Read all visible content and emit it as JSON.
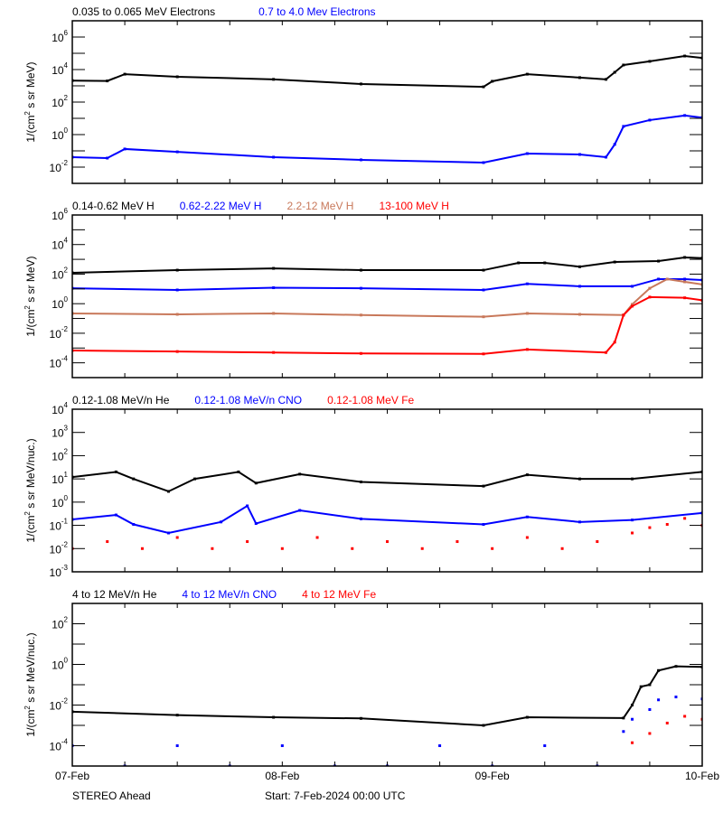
{
  "chart_data": [
    {
      "type": "line",
      "legend": [
        {
          "text": "0.035 to 0.065 MeV Electrons",
          "color": "#000000"
        },
        {
          "text": "0.7 to 4.0 Mev Electrons",
          "color": "#0000ff"
        }
      ],
      "ylabel": "1/(cm2 s sr MeV)",
      "yscale": "log",
      "ylim": [
        0.001,
        10000000.0
      ],
      "ytick_exponents": [
        "6",
        "4",
        "2",
        "0",
        "-2"
      ],
      "series": [
        {
          "color": "#000000",
          "style": "line",
          "points": [
            [
              "07-Feb 00:00",
              2100
            ],
            [
              "07-Feb 04:00",
              2000
            ],
            [
              "07-Feb 06:00",
              5200
            ],
            [
              "07-Feb 12:00",
              3600
            ],
            [
              "07-Feb 23:00",
              2500
            ],
            [
              "08-Feb 09:00",
              1300
            ],
            [
              "08-Feb 23:00",
              870
            ],
            [
              "09-Feb 00:00",
              1900
            ],
            [
              "09-Feb 04:00",
              5200
            ],
            [
              "09-Feb 10:00",
              3200
            ],
            [
              "09-Feb 13:00",
              2500
            ],
            [
              "09-Feb 14:00",
              6800
            ],
            [
              "09-Feb 15:00",
              19000
            ],
            [
              "09-Feb 18:00",
              32000
            ],
            [
              "09-Feb 22:00",
              68000
            ],
            [
              "10-Feb 00:00",
              52000
            ]
          ]
        },
        {
          "color": "#0000ff",
          "style": "line",
          "points": [
            [
              "07-Feb 00:00",
              0.041
            ],
            [
              "07-Feb 04:00",
              0.036
            ],
            [
              "07-Feb 06:00",
              0.13
            ],
            [
              "07-Feb 12:00",
              0.087
            ],
            [
              "07-Feb 23:00",
              0.041
            ],
            [
              "08-Feb 09:00",
              0.028
            ],
            [
              "08-Feb 23:00",
              0.019
            ],
            [
              "09-Feb 04:00",
              0.068
            ],
            [
              "09-Feb 10:00",
              0.06
            ],
            [
              "09-Feb 13:00",
              0.041
            ],
            [
              "09-Feb 14:00",
              0.25
            ],
            [
              "09-Feb 15:00",
              3.2
            ],
            [
              "09-Feb 18:00",
              7.8
            ],
            [
              "09-Feb 22:00",
              15
            ],
            [
              "10-Feb 00:00",
              11
            ]
          ]
        }
      ]
    },
    {
      "type": "line",
      "legend": [
        {
          "text": "0.14-0.62 MeV H",
          "color": "#000000"
        },
        {
          "text": "0.62-2.22 MeV H",
          "color": "#0000ff"
        },
        {
          "text": "2.2-12 MeV H",
          "color": "#c8785a"
        },
        {
          "text": "13-100 MeV H",
          "color": "#ff0000"
        }
      ],
      "ylabel": "1/(cm2 s sr MeV)",
      "yscale": "log",
      "ylim": [
        1e-05,
        1000000.0
      ],
      "ytick_exponents": [
        "6",
        "4",
        "2",
        "0",
        "-2",
        "-4"
      ],
      "series": [
        {
          "color": "#000000",
          "style": "line",
          "points": [
            [
              "07-Feb 00:00",
              123
            ],
            [
              "07-Feb 12:00",
              186
            ],
            [
              "07-Feb 23:00",
              245
            ],
            [
              "08-Feb 09:00",
              186
            ],
            [
              "08-Feb 23:00",
              186
            ],
            [
              "09-Feb 03:00",
              575
            ],
            [
              "09-Feb 06:00",
              575
            ],
            [
              "09-Feb 10:00",
              316
            ],
            [
              "09-Feb 14:00",
              660
            ],
            [
              "09-Feb 19:00",
              760
            ],
            [
              "09-Feb 22:00",
              1350
            ],
            [
              "10-Feb 00:00",
              1200
            ]
          ]
        },
        {
          "color": "#0000ff",
          "style": "line",
          "points": [
            [
              "07-Feb 00:00",
              11
            ],
            [
              "07-Feb 12:00",
              8.5
            ],
            [
              "07-Feb 23:00",
              12
            ],
            [
              "08-Feb 09:00",
              11
            ],
            [
              "08-Feb 23:00",
              8.5
            ],
            [
              "09-Feb 04:00",
              22
            ],
            [
              "09-Feb 10:00",
              15
            ],
            [
              "09-Feb 16:00",
              15
            ],
            [
              "09-Feb 19:00",
              46
            ],
            [
              "09-Feb 22:00",
              46
            ],
            [
              "10-Feb 00:00",
              40
            ]
          ]
        },
        {
          "color": "#c8785a",
          "style": "line",
          "points": [
            [
              "07-Feb 00:00",
              0.22
            ],
            [
              "07-Feb 12:00",
              0.19
            ],
            [
              "07-Feb 23:00",
              0.22
            ],
            [
              "08-Feb 09:00",
              0.17
            ],
            [
              "08-Feb 23:00",
              0.13
            ],
            [
              "09-Feb 04:00",
              0.22
            ],
            [
              "09-Feb 10:00",
              0.19
            ],
            [
              "09-Feb 15:00",
              0.17
            ],
            [
              "09-Feb 16:00",
              0.9
            ],
            [
              "09-Feb 18:00",
              11
            ],
            [
              "09-Feb 20:00",
              46
            ],
            [
              "09-Feb 22:00",
              30
            ],
            [
              "10-Feb 00:00",
              20
            ]
          ]
        },
        {
          "color": "#ff0000",
          "style": "line",
          "points": [
            [
              "07-Feb 00:00",
              0.00068
            ],
            [
              "07-Feb 12:00",
              0.00058
            ],
            [
              "07-Feb 23:00",
              0.0005
            ],
            [
              "08-Feb 09:00",
              0.00043
            ],
            [
              "08-Feb 23:00",
              0.0004
            ],
            [
              "09-Feb 04:00",
              0.0008
            ],
            [
              "09-Feb 13:00",
              0.0005
            ],
            [
              "09-Feb 14:00",
              0.0025
            ],
            [
              "09-Feb 15:00",
              0.17
            ],
            [
              "09-Feb 16:00",
              0.68
            ],
            [
              "09-Feb 18:00",
              2.8
            ],
            [
              "09-Feb 22:00",
              2.5
            ],
            [
              "10-Feb 00:00",
              1.7
            ]
          ]
        }
      ]
    },
    {
      "type": "scatter",
      "legend": [
        {
          "text": "0.12-1.08 MeV/n He",
          "color": "#000000"
        },
        {
          "text": "0.12-1.08 MeV/n CNO",
          "color": "#0000ff"
        },
        {
          "text": "0.12-1.08 MeV Fe",
          "color": "#ff0000"
        }
      ],
      "ylabel": "1/(cm2 s sr MeV/nuc.)",
      "yscale": "log",
      "ylim": [
        0.001,
        10000.0
      ],
      "ytick_exponents": [
        "4",
        "3",
        "2",
        "1",
        "0",
        "-1",
        "-2",
        "-3"
      ],
      "series": [
        {
          "color": "#000000",
          "style": "line",
          "points": [
            [
              "07-Feb 00:00",
              12
            ],
            [
              "07-Feb 05:00",
              20
            ],
            [
              "07-Feb 07:00",
              10
            ],
            [
              "07-Feb 11:00",
              2.9
            ],
            [
              "07-Feb 14:00",
              10
            ],
            [
              "07-Feb 19:00",
              20
            ],
            [
              "07-Feb 21:00",
              6.6
            ],
            [
              "08-Feb 02:00",
              16
            ],
            [
              "08-Feb 09:00",
              7.4
            ],
            [
              "08-Feb 23:00",
              4.9
            ],
            [
              "09-Feb 04:00",
              15
            ],
            [
              "09-Feb 10:00",
              10
            ],
            [
              "09-Feb 16:00",
              10
            ],
            [
              "10-Feb 00:00",
              20
            ]
          ]
        },
        {
          "color": "#0000ff",
          "style": "line",
          "points": [
            [
              "07-Feb 00:00",
              0.18
            ],
            [
              "07-Feb 05:00",
              0.28
            ],
            [
              "07-Feb 07:00",
              0.11
            ],
            [
              "07-Feb 11:00",
              0.047
            ],
            [
              "07-Feb 17:00",
              0.14
            ],
            [
              "07-Feb 20:00",
              0.69
            ],
            [
              "07-Feb 21:00",
              0.12
            ],
            [
              "08-Feb 02:00",
              0.44
            ],
            [
              "08-Feb 09:00",
              0.19
            ],
            [
              "08-Feb 23:00",
              0.11
            ],
            [
              "09-Feb 04:00",
              0.23
            ],
            [
              "09-Feb 10:00",
              0.14
            ],
            [
              "09-Feb 16:00",
              0.17
            ],
            [
              "10-Feb 00:00",
              0.34
            ]
          ]
        },
        {
          "color": "#ff0000",
          "style": "points",
          "points": [
            [
              "07-Feb 00:00",
              0.01
            ],
            [
              "07-Feb 04:00",
              0.02
            ],
            [
              "07-Feb 08:00",
              0.01
            ],
            [
              "07-Feb 12:00",
              0.03
            ],
            [
              "07-Feb 16:00",
              0.01
            ],
            [
              "07-Feb 20:00",
              0.02
            ],
            [
              "08-Feb 00:00",
              0.01
            ],
            [
              "08-Feb 04:00",
              0.03
            ],
            [
              "08-Feb 08:00",
              0.01
            ],
            [
              "08-Feb 12:00",
              0.02
            ],
            [
              "08-Feb 16:00",
              0.01
            ],
            [
              "08-Feb 20:00",
              0.02
            ],
            [
              "09-Feb 00:00",
              0.01
            ],
            [
              "09-Feb 04:00",
              0.03
            ],
            [
              "09-Feb 08:00",
              0.01
            ],
            [
              "09-Feb 12:00",
              0.02
            ],
            [
              "09-Feb 16:00",
              0.047
            ],
            [
              "09-Feb 18:00",
              0.08
            ],
            [
              "09-Feb 20:00",
              0.11
            ],
            [
              "09-Feb 22:00",
              0.2
            ],
            [
              "10-Feb 00:00",
              0.1
            ]
          ]
        }
      ]
    },
    {
      "type": "scatter",
      "legend": [
        {
          "text": "4 to 12 MeV/n He",
          "color": "#000000"
        },
        {
          "text": "4 to 12 MeV/n CNO",
          "color": "#0000ff"
        },
        {
          "text": "4 to 12 MeV Fe",
          "color": "#ff0000"
        }
      ],
      "ylabel": "1/(cm2 s sr MeV/nuc.)",
      "yscale": "log",
      "ylim": [
        1e-05,
        1000.0
      ],
      "ytick_exponents": [
        "2",
        "0",
        "-2",
        "-4"
      ],
      "series": [
        {
          "color": "#000000",
          "style": "line",
          "points": [
            [
              "07-Feb 00:00",
              0.0047
            ],
            [
              "07-Feb 12:00",
              0.0032
            ],
            [
              "07-Feb 23:00",
              0.0025
            ],
            [
              "08-Feb 09:00",
              0.0022
            ],
            [
              "08-Feb 23:00",
              0.001
            ],
            [
              "09-Feb 04:00",
              0.0025
            ],
            [
              "09-Feb 15:00",
              0.0023
            ],
            [
              "09-Feb 16:00",
              0.01
            ],
            [
              "09-Feb 17:00",
              0.08
            ],
            [
              "09-Feb 18:00",
              0.1
            ],
            [
              "09-Feb 19:00",
              0.5
            ],
            [
              "09-Feb 21:00",
              0.8
            ],
            [
              "10-Feb 00:00",
              0.75
            ]
          ]
        },
        {
          "color": "#0000ff",
          "style": "points",
          "points": [
            [
              "07-Feb 00:00",
              0.0001
            ],
            [
              "07-Feb 06:00",
              1e-05
            ],
            [
              "07-Feb 12:00",
              0.0001
            ],
            [
              "07-Feb 18:00",
              1e-05
            ],
            [
              "08-Feb 00:00",
              0.0001
            ],
            [
              "08-Feb 06:00",
              1e-05
            ],
            [
              "08-Feb 12:00",
              1e-05
            ],
            [
              "08-Feb 18:00",
              0.0001
            ],
            [
              "09-Feb 00:00",
              1e-05
            ],
            [
              "09-Feb 06:00",
              0.0001
            ],
            [
              "09-Feb 12:00",
              1e-05
            ],
            [
              "09-Feb 15:00",
              0.0005
            ],
            [
              "09-Feb 16:00",
              0.002
            ],
            [
              "09-Feb 18:00",
              0.006
            ],
            [
              "09-Feb 19:00",
              0.018
            ],
            [
              "09-Feb 21:00",
              0.025
            ],
            [
              "10-Feb 00:00",
              0.02
            ]
          ]
        },
        {
          "color": "#ff0000",
          "style": "points",
          "points": [
            [
              "09-Feb 16:00",
              0.00014
            ],
            [
              "09-Feb 18:00",
              0.0004
            ],
            [
              "09-Feb 20:00",
              0.0013
            ],
            [
              "09-Feb 22:00",
              0.0028
            ],
            [
              "10-Feb 00:00",
              0.002
            ]
          ]
        }
      ]
    }
  ],
  "xaxis": {
    "range": [
      "07-Feb 00:00",
      "10-Feb 00:00"
    ],
    "tick_labels": [
      "07-Feb",
      "08-Feb",
      "09-Feb",
      "10-Feb"
    ]
  },
  "footer": {
    "spacecraft": "STEREO Ahead",
    "start": "Start:  7-Feb-2024 00:00 UTC"
  },
  "grid": false
}
